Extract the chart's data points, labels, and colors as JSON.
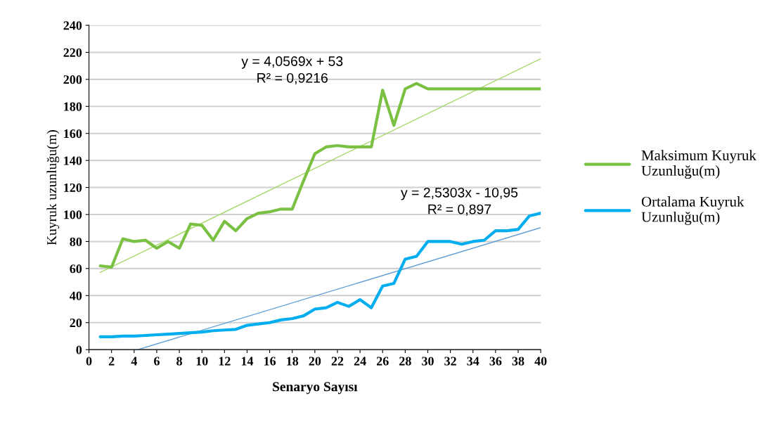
{
  "chart_data": {
    "type": "line",
    "xlabel": "Senaryo Sayısı",
    "ylabel": "Kuyruk uzunluğu(m)",
    "x": [
      1,
      2,
      3,
      4,
      5,
      6,
      7,
      8,
      9,
      10,
      11,
      12,
      13,
      14,
      15,
      16,
      17,
      18,
      19,
      20,
      21,
      22,
      23,
      24,
      25,
      26,
      27,
      28,
      29,
      30,
      31,
      32,
      33,
      34,
      35,
      36,
      37,
      38,
      39,
      40
    ],
    "series": [
      {
        "name": "Maksimum Kuyruk Uzunluğu(m)",
        "color": "#7ac143",
        "values": [
          62,
          61,
          82,
          80,
          81,
          75,
          80,
          75,
          93,
          92,
          81,
          95,
          88,
          97,
          101,
          102,
          104,
          104,
          125,
          145,
          150,
          151,
          150,
          150,
          150,
          192,
          166,
          193,
          197,
          193,
          193,
          193,
          193,
          193,
          193,
          193,
          193,
          193,
          193,
          193
        ]
      },
      {
        "name": "Ortalama Kuyruk Uzunluğu(m)",
        "color": "#00aeef",
        "values": [
          9.5,
          9.5,
          10,
          10,
          10.5,
          11,
          11.5,
          12,
          12.5,
          13,
          14,
          14.5,
          15,
          18,
          19,
          20,
          22,
          23,
          25,
          30,
          31,
          35,
          32,
          37,
          31,
          47,
          49,
          67,
          69,
          80,
          80,
          80,
          78,
          80,
          81,
          88,
          88,
          89,
          99,
          101
        ]
      },
      {
        "type": "line",
        "color": "#a6d96a",
        "x": [
          1,
          40
        ],
        "values": [
          57.1,
          215.3
        ]
      },
      {
        "type": "line",
        "color": "#5b9bd5",
        "x": [
          4.33,
          40
        ],
        "values": [
          0,
          90.3
        ]
      }
    ],
    "annotations": [
      "y = 4,0569x + 53\nR² = 0,9216",
      "y = 2,5303x - 10,95\nR² = 0,897"
    ],
    "xlim": [
      0,
      40
    ],
    "xticks": [
      0,
      2,
      4,
      6,
      8,
      10,
      12,
      14,
      16,
      18,
      20,
      22,
      24,
      26,
      28,
      30,
      32,
      34,
      36,
      38,
      40
    ],
    "ylim": [
      0,
      240
    ],
    "yticks": [
      0,
      20,
      40,
      60,
      80,
      100,
      120,
      140,
      160,
      180,
      200,
      220,
      240
    ],
    "grid": "y",
    "legend": "right",
    "marker": "none",
    "line_style": "solid"
  }
}
